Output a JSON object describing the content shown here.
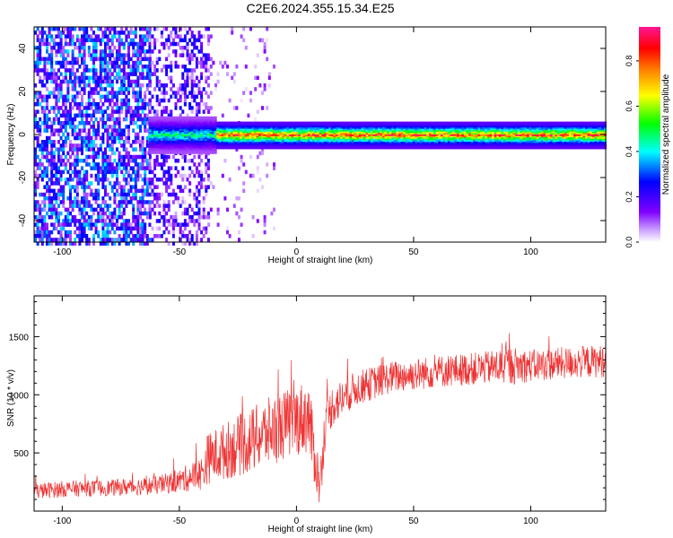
{
  "title": "C2E6.2024.355.15.34.E25",
  "chart_data": [
    {
      "type": "heatmap",
      "xlabel": "Height of straight line (km)",
      "ylabel": "Frequency (Hz)",
      "xlim": [
        -112,
        132
      ],
      "ylim": [
        -50,
        50
      ],
      "xticks": [
        -100,
        -50,
        0,
        50,
        100
      ],
      "xtick_labels": [
        "-100",
        "-50",
        "0",
        "50",
        "100"
      ],
      "yticks": [
        -40,
        -20,
        0,
        20,
        40
      ],
      "ytick_labels": [
        "-40",
        "-20",
        "0",
        "20",
        "40"
      ],
      "colorbar": {
        "label": "Normalized spectral amplitude",
        "range": [
          0,
          0.95
        ],
        "ticks": [
          0,
          0.2,
          0.4,
          0.6,
          0.8
        ],
        "tick_labels": [
          "0.0",
          "0.2",
          "0.4",
          "0.6",
          "0.8"
        ],
        "colormap": [
          "#ffffff",
          "#8000ff",
          "#0000ff",
          "#00ffff",
          "#00ff00",
          "#ffff00",
          "#ff8000",
          "#ff0000",
          "#ff00aa"
        ]
      },
      "regions": [
        {
          "x_range": [
            -112,
            -63
          ],
          "freq_spread": 50,
          "level": [
            0.05,
            0.35
          ],
          "density": 0.65
        },
        {
          "x_range": [
            -63,
            -38
          ],
          "freq_spread": 50,
          "level": [
            0.02,
            0.25
          ],
          "density": 0.4
        },
        {
          "x_range": [
            -38,
            -10
          ],
          "freq_spread": 50,
          "level": [
            0.01,
            0.12
          ],
          "density": 0.07
        },
        {
          "x_range": [
            -63,
            132
          ],
          "freq_spread": 6,
          "level": [
            0.15,
            0.95
          ],
          "density": 1.0,
          "band": true
        }
      ],
      "grid": false
    },
    {
      "type": "line",
      "xlabel": "Height of straight line (km)",
      "ylabel": "SNR (10 * v/v)",
      "xlim": [
        -112,
        132
      ],
      "ylim": [
        0,
        1850
      ],
      "xticks": [
        -100,
        -50,
        0,
        50,
        100
      ],
      "xtick_labels": [
        "-100",
        "-50",
        "0",
        "50",
        "100"
      ],
      "yticks": [
        500,
        1000,
        1500
      ],
      "ytick_labels": [
        "500",
        "1000",
        "1500"
      ],
      "color": "#ee3333",
      "x": [
        -112,
        -100,
        -80,
        -60,
        -50,
        -40,
        -38,
        -30,
        -20,
        -10,
        0,
        5,
        10,
        12,
        15,
        25,
        40,
        60,
        80,
        90,
        100,
        120,
        132
      ],
      "values": [
        170,
        190,
        200,
        220,
        260,
        330,
        450,
        520,
        600,
        700,
        780,
        820,
        200,
        700,
        900,
        1050,
        1150,
        1200,
        1230,
        1250,
        1250,
        1280,
        1290
      ],
      "noise": [
        70,
        70,
        70,
        80,
        100,
        150,
        220,
        250,
        280,
        300,
        300,
        330,
        200,
        200,
        180,
        150,
        140,
        140,
        140,
        170,
        140,
        140,
        140
      ],
      "grid": false
    }
  ]
}
